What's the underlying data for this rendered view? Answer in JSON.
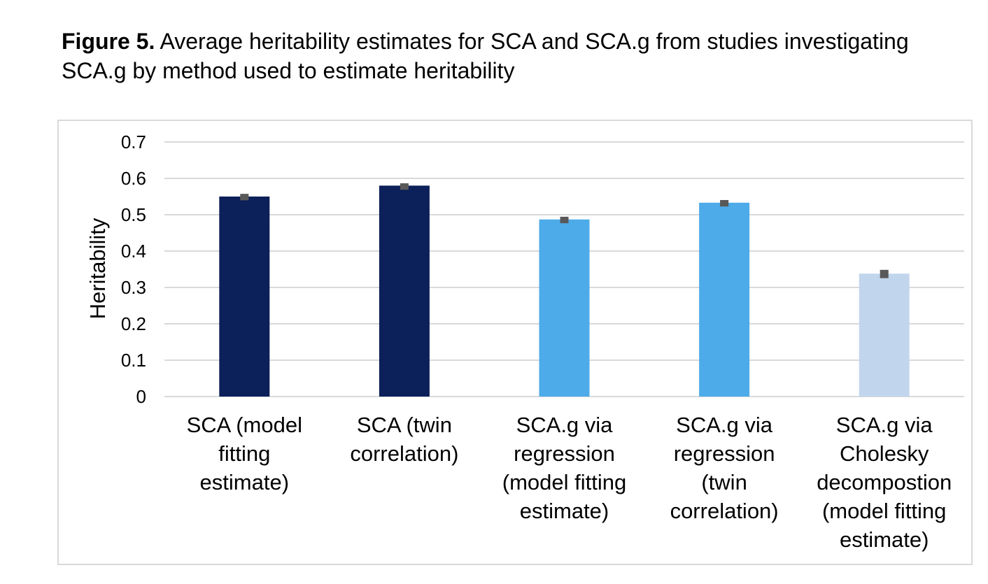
{
  "caption": {
    "label": "Figure 5.",
    "text": " Average heritability estimates for SCA and SCA.g from studies investigating SCA.g by method used to estimate heritability"
  },
  "colors": {
    "dark_navy": "#0c2059",
    "light_blue": "#4eabe9",
    "pale_blue": "#c1d6ec",
    "gridline": "#d9d9d9",
    "error_bar": "#595959"
  },
  "chart_data": {
    "type": "bar",
    "ylabel": "Heritability",
    "xlabel": "",
    "ylim": [
      0,
      0.7
    ],
    "yticks": [
      "0",
      "0.1",
      "0.2",
      "0.3",
      "0.4",
      "0.5",
      "0.6",
      "0.7"
    ],
    "grid": true,
    "legend": "none",
    "categories": [
      [
        "SCA (model",
        "fitting",
        "estimate)"
      ],
      [
        "SCA (twin",
        "correlation)"
      ],
      [
        "SCA.g via",
        "regression",
        "(model fitting",
        "estimate)"
      ],
      [
        "SCA.g via",
        "regression",
        "(twin",
        "correlation)"
      ],
      [
        "SCA.g via",
        "Cholesky",
        "decompostion",
        "(model fitting",
        "estimate)"
      ]
    ],
    "values": [
      0.55,
      0.58,
      0.487,
      0.533,
      0.338
    ],
    "error_low": [
      0.545,
      0.575,
      0.482,
      0.528,
      0.328
    ],
    "error_high": [
      0.555,
      0.584,
      0.492,
      0.538,
      0.346
    ],
    "bar_colors": [
      "#0c2059",
      "#0c2059",
      "#4eabe9",
      "#4eabe9",
      "#c1d6ec"
    ]
  }
}
